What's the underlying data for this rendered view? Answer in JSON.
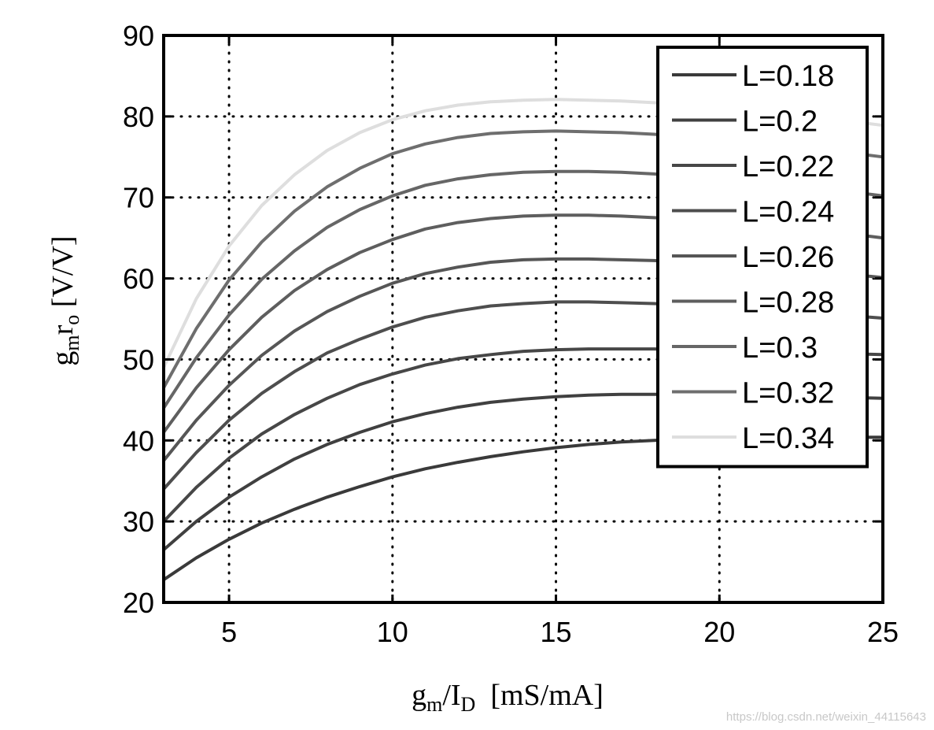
{
  "chart_data": {
    "type": "line",
    "xlabel": {
      "g": "g",
      "m": "m",
      "slash": "/I",
      "d": "D",
      "unit": "  [mS/mA]"
    },
    "ylabel": {
      "g": "g",
      "m": "m",
      "r": "r",
      "o": "o",
      "unit": " [V/V]"
    },
    "xlim": [
      3,
      25
    ],
    "ylim": [
      20,
      90
    ],
    "xticks": [
      5,
      10,
      15,
      20,
      25
    ],
    "yticks": [
      20,
      30,
      40,
      50,
      60,
      70,
      80,
      90
    ],
    "grid": "dotted",
    "legend_position": "top-right",
    "x": [
      3,
      4,
      5,
      6,
      7,
      8,
      9,
      10,
      11,
      12,
      13,
      14,
      15,
      16,
      17,
      18,
      19,
      20,
      21,
      22,
      23,
      24,
      25
    ],
    "series": [
      {
        "name": "L=0.18",
        "color": "#3a3a3a",
        "values": [
          22.8,
          25.5,
          27.8,
          29.8,
          31.5,
          33.0,
          34.3,
          35.5,
          36.5,
          37.3,
          38.0,
          38.6,
          39.1,
          39.5,
          39.8,
          40.0,
          40.2,
          40.3,
          40.4,
          40.4,
          40.4,
          40.4,
          40.4
        ]
      },
      {
        "name": "L=0.2",
        "color": "#404040",
        "values": [
          26.5,
          30.0,
          33.0,
          35.5,
          37.7,
          39.5,
          41.0,
          42.3,
          43.3,
          44.1,
          44.7,
          45.1,
          45.4,
          45.6,
          45.7,
          45.7,
          45.7,
          45.7,
          45.6,
          45.5,
          45.4,
          45.3,
          45.2
        ]
      },
      {
        "name": "L=0.22",
        "color": "#474747",
        "values": [
          30.0,
          34.2,
          37.8,
          40.8,
          43.2,
          45.2,
          46.9,
          48.2,
          49.3,
          50.1,
          50.6,
          51.0,
          51.2,
          51.3,
          51.3,
          51.3,
          51.2,
          51.1,
          51.0,
          50.9,
          50.8,
          50.7,
          50.6
        ]
      },
      {
        "name": "L=0.24",
        "color": "#4e4e4e",
        "values": [
          34.0,
          38.5,
          42.5,
          45.8,
          48.5,
          50.8,
          52.5,
          54.0,
          55.2,
          56.0,
          56.6,
          56.9,
          57.1,
          57.1,
          57.0,
          56.9,
          56.7,
          56.5,
          56.3,
          56.0,
          55.7,
          55.4,
          55.1
        ]
      },
      {
        "name": "L=0.26",
        "color": "#565656",
        "values": [
          37.5,
          42.5,
          46.8,
          50.5,
          53.5,
          55.9,
          57.8,
          59.4,
          60.6,
          61.4,
          62.0,
          62.3,
          62.4,
          62.4,
          62.3,
          62.2,
          62.0,
          61.8,
          61.5,
          61.2,
          60.9,
          60.5,
          60.1
        ]
      },
      {
        "name": "L=0.28",
        "color": "#5e5e5e",
        "values": [
          41.0,
          46.5,
          51.2,
          55.2,
          58.5,
          61.1,
          63.2,
          64.8,
          66.1,
          66.9,
          67.4,
          67.7,
          67.8,
          67.8,
          67.7,
          67.5,
          67.3,
          67.0,
          66.7,
          66.3,
          65.9,
          65.5,
          65.0
        ]
      },
      {
        "name": "L=0.3",
        "color": "#666666",
        "values": [
          44.0,
          50.2,
          55.5,
          59.9,
          63.4,
          66.3,
          68.5,
          70.2,
          71.5,
          72.3,
          72.8,
          73.1,
          73.2,
          73.2,
          73.1,
          72.9,
          72.6,
          72.3,
          72.0,
          71.6,
          71.2,
          70.7,
          70.2
        ]
      },
      {
        "name": "L=0.32",
        "color": "#6e6e6e",
        "values": [
          46.5,
          53.8,
          59.8,
          64.5,
          68.3,
          71.3,
          73.6,
          75.4,
          76.6,
          77.4,
          77.9,
          78.1,
          78.2,
          78.1,
          78.0,
          77.8,
          77.5,
          77.2,
          76.8,
          76.4,
          76.0,
          75.5,
          75.0
        ]
      },
      {
        "name": "L=0.34",
        "color": "#dedede",
        "values": [
          49.0,
          57.5,
          64.0,
          69.0,
          72.8,
          75.8,
          78.0,
          79.6,
          80.7,
          81.4,
          81.8,
          82.0,
          82.1,
          82.0,
          81.9,
          81.7,
          81.4,
          81.1,
          80.7,
          80.3,
          79.9,
          79.4,
          78.9
        ]
      }
    ]
  },
  "watermark": "https://blog.csdn.net/weixin_44115643"
}
